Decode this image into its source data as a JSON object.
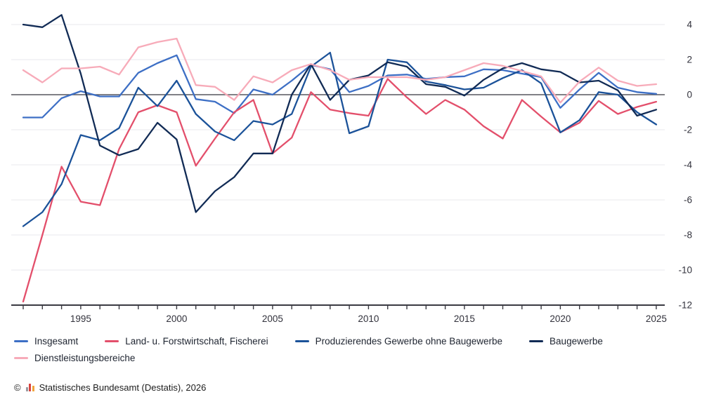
{
  "chart": {
    "y_axis_side": "right",
    "background": "#ffffff",
    "zero_line_color": "#57575f",
    "grid_color": "#e8e8ed"
  },
  "chart_data": {
    "type": "line",
    "title": "",
    "xlabel": "",
    "ylabel": "",
    "x": [
      1992,
      1993,
      1994,
      1995,
      1996,
      1997,
      1998,
      1999,
      2000,
      2001,
      2002,
      2003,
      2004,
      2005,
      2006,
      2007,
      2008,
      2009,
      2010,
      2011,
      2012,
      2013,
      2014,
      2015,
      2016,
      2017,
      2018,
      2019,
      2020,
      2021,
      2022,
      2023,
      2024,
      2025
    ],
    "x_tick_labels": [
      1995,
      2000,
      2005,
      2010,
      2015,
      2020,
      2025
    ],
    "y_tick_labels": [
      4,
      2,
      0,
      -2,
      -4,
      -6,
      -8,
      -10,
      -12
    ],
    "ylim": [
      -12,
      5
    ],
    "grid": true,
    "legend_position": "bottom",
    "series": [
      {
        "name": "Insgesamt",
        "color": "#3d6fc5",
        "values": [
          -1.3,
          -1.3,
          -0.2,
          0.2,
          -0.1,
          -0.1,
          1.25,
          1.8,
          2.25,
          -0.25,
          -0.4,
          -1.05,
          0.3,
          0.0,
          0.8,
          1.7,
          1.45,
          0.15,
          0.5,
          1.1,
          1.15,
          0.9,
          1.0,
          1.05,
          1.45,
          1.4,
          1.2,
          1.0,
          -0.75,
          0.3,
          1.25,
          0.4,
          0.15,
          0.05
        ]
      },
      {
        "name": "Land- u. Forstwirtschaft, Fischerei",
        "color": "#e34f6b",
        "values": [
          -11.8,
          -8.0,
          -4.1,
          -6.1,
          -6.3,
          -3.1,
          -1.0,
          -0.6,
          -1.0,
          -4.05,
          -2.5,
          -1.0,
          -0.3,
          -3.35,
          -2.45,
          0.15,
          -0.85,
          -1.05,
          -1.2,
          0.9,
          -0.15,
          -1.1,
          -0.3,
          -0.85,
          -1.8,
          -2.5,
          -0.3,
          -1.25,
          -2.15,
          -1.6,
          -0.35,
          -1.1,
          -0.7,
          -0.4
        ]
      },
      {
        "name": "Produzierendes Gewerbe ohne Baugewerbe",
        "color": "#1b5299",
        "values": [
          -7.5,
          -6.7,
          -5.1,
          -2.3,
          -2.6,
          -1.9,
          0.4,
          -0.65,
          0.8,
          -1.1,
          -2.1,
          -2.6,
          -1.5,
          -1.7,
          -1.1,
          1.6,
          2.4,
          -2.2,
          -1.8,
          2.0,
          1.85,
          0.75,
          0.55,
          0.3,
          0.4,
          0.95,
          1.4,
          0.65,
          -2.15,
          -1.45,
          0.15,
          0.0,
          -1.0,
          -1.7
        ]
      },
      {
        "name": "Baugewerbe",
        "color": "#112b55",
        "values": [
          4.0,
          3.85,
          4.55,
          1.2,
          -2.9,
          -3.45,
          -3.1,
          -1.6,
          -2.55,
          -6.7,
          -5.5,
          -4.7,
          -3.35,
          -3.35,
          0.0,
          1.75,
          -0.3,
          0.85,
          1.1,
          1.85,
          1.6,
          0.6,
          0.45,
          -0.05,
          0.85,
          1.5,
          1.8,
          1.45,
          1.3,
          0.7,
          0.8,
          0.25,
          -1.2,
          -0.85
        ]
      },
      {
        "name": "Dienstleistungsbereiche",
        "color": "#f7abb9",
        "values": [
          1.4,
          0.7,
          1.5,
          1.5,
          1.6,
          1.15,
          2.7,
          3.0,
          3.2,
          0.55,
          0.45,
          -0.3,
          1.05,
          0.7,
          1.4,
          1.75,
          1.4,
          0.85,
          1.0,
          1.0,
          1.0,
          0.85,
          1.0,
          1.4,
          1.8,
          1.65,
          1.35,
          1.05,
          -0.45,
          0.75,
          1.55,
          0.8,
          0.5,
          0.6
        ]
      }
    ]
  },
  "legend": {
    "swatch_style": "line"
  },
  "footer": {
    "copyright_symbol": "©",
    "source_text": "Statistisches Bundesamt (Destatis), 2026",
    "logo_icon": "destatis-bar-chart-icon"
  }
}
